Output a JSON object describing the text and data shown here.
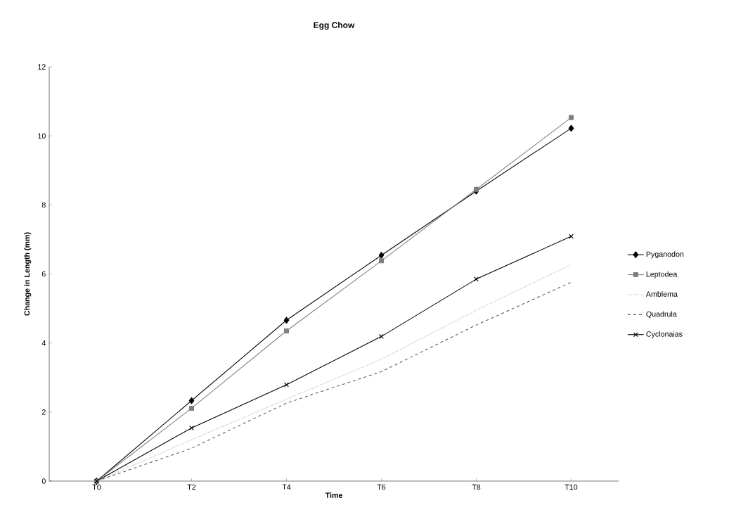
{
  "chart_data": {
    "type": "line",
    "title": "Egg Chow",
    "xlabel": "Time",
    "ylabel": "Change in Length (mm)",
    "categories": [
      "T0",
      "T2",
      "T4",
      "T6",
      "T8",
      "T10"
    ],
    "series": [
      {
        "name": "Pyganodon",
        "color": "#000000",
        "marker": "diamond",
        "line_style": "solid",
        "values": [
          0,
          2.33,
          4.66,
          6.54,
          8.4,
          10.22
        ]
      },
      {
        "name": "Leptodea",
        "color": "#7f7f7f",
        "marker": "square",
        "line_style": "solid",
        "values": [
          0,
          2.11,
          4.35,
          6.38,
          8.45,
          10.53
        ]
      },
      {
        "name": "Amblema",
        "color": "#b4b4b4",
        "marker": "none",
        "line_style": "dotted",
        "values": [
          0,
          1.2,
          2.37,
          3.53,
          4.95,
          6.27
        ]
      },
      {
        "name": "Quadrula",
        "color": "#555555",
        "marker": "none",
        "line_style": "dashed",
        "values": [
          0,
          0.95,
          2.26,
          3.17,
          4.52,
          5.76
        ]
      },
      {
        "name": "Cyclonaias",
        "color": "#000000",
        "marker": "cross",
        "line_style": "solid",
        "values": [
          0,
          1.54,
          2.79,
          4.19,
          5.85,
          7.09
        ]
      }
    ],
    "ylim": [
      0,
      12
    ],
    "yticks": [
      0,
      2,
      4,
      6,
      8,
      10,
      12
    ],
    "grid": false,
    "legend": "right"
  }
}
